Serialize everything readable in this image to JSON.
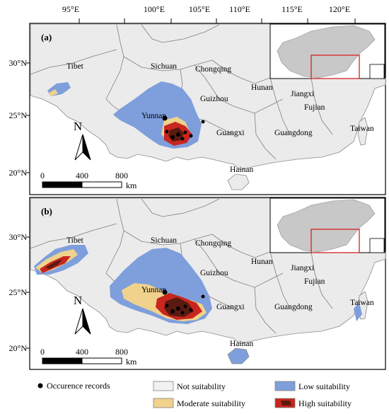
{
  "top_ticks": [
    "95°E",
    "100°E",
    "105°E",
    "110°E",
    "115°E",
    "120°E"
  ],
  "lat_ticks": [
    "30°N",
    "25°N",
    "20°N"
  ],
  "panels": [
    {
      "label": "(a)",
      "places": [
        "Tibet",
        "Sichuan",
        "Chongqing",
        "Guizhou",
        "Hunan",
        "Jiangxi",
        "Fujian",
        "Yunnan",
        "Guangxi",
        "Guangdong",
        "Taiwan",
        "Hainan"
      ],
      "north": "N",
      "scale_labels": [
        "0",
        "400",
        "800",
        "km"
      ]
    },
    {
      "label": "(b)",
      "places": [
        "Tibet",
        "Sichuan",
        "Chongqing",
        "Guizhou",
        "Hunan",
        "Jiangxi",
        "Fujian",
        "Yunnan",
        "Guangxi",
        "Guangdong",
        "Taiwan",
        "Hainan"
      ],
      "north": "N",
      "scale_labels": [
        "0",
        "400",
        "800",
        "km"
      ]
    }
  ],
  "legend": {
    "occurrence": "Occurence records",
    "not_suitability": "Not suitability",
    "low_suitability": "Low suitability",
    "moderate_suitability": "Moderate suitability",
    "high_suitability": "High suitability"
  },
  "colors": {
    "land": "#ededed",
    "not_suitable": "#f2f2f2",
    "low": "#7e9fdc",
    "moderate": "#f0d28c",
    "high": "#c8261e",
    "high_dark": "#5a1a10",
    "inset_land": "#c8c8c8",
    "inset_box": "#d62020"
  }
}
